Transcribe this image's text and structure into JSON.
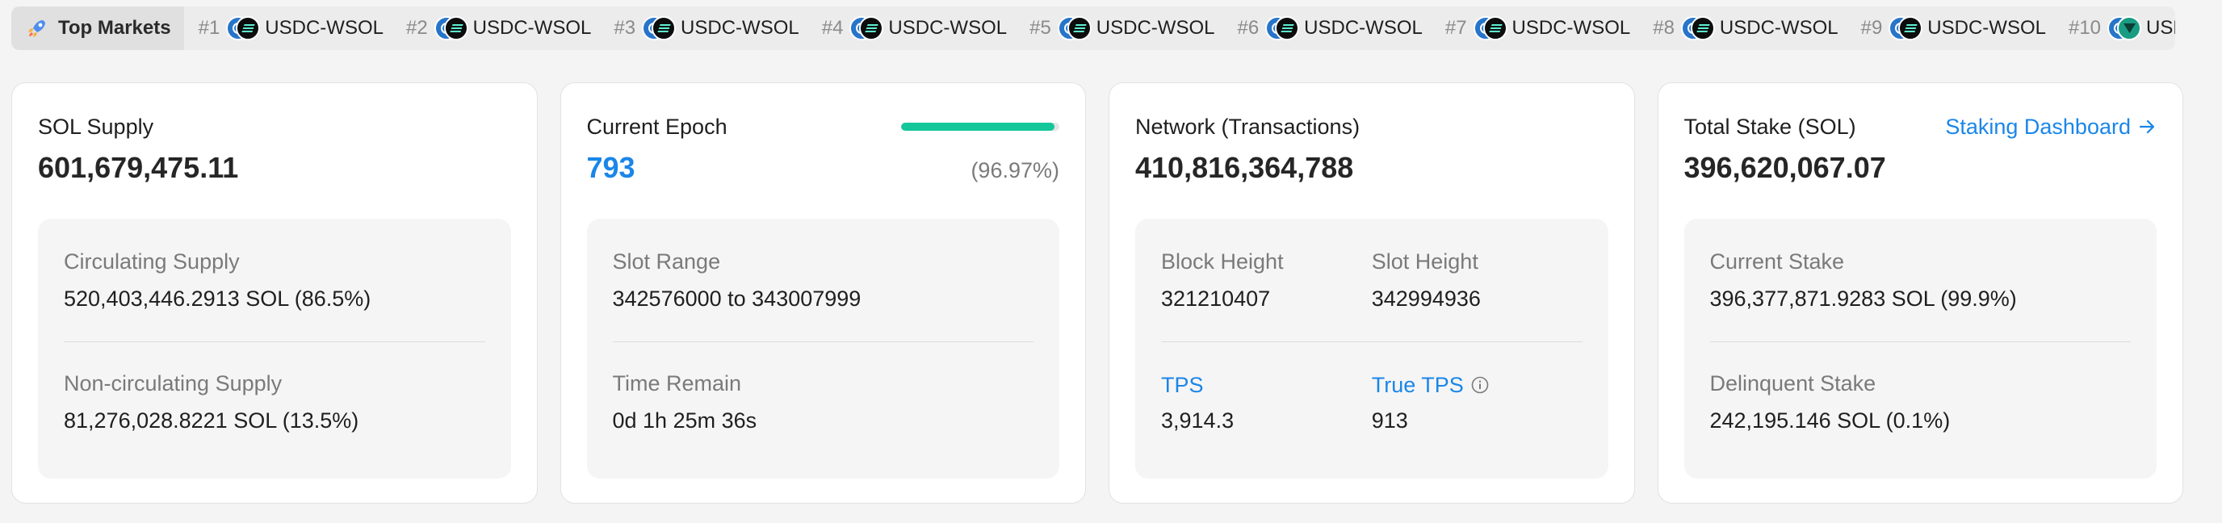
{
  "ticker": {
    "label": "Top Markets",
    "markets": [
      {
        "rank": "#1",
        "pair": "USDC-WSOL",
        "base_icon": "usdc-icon",
        "quote_icon": "sol-icon"
      },
      {
        "rank": "#2",
        "pair": "USDC-WSOL",
        "base_icon": "usdc-icon",
        "quote_icon": "sol-icon"
      },
      {
        "rank": "#3",
        "pair": "USDC-WSOL",
        "base_icon": "usdc-icon",
        "quote_icon": "sol-icon"
      },
      {
        "rank": "#4",
        "pair": "USDC-WSOL",
        "base_icon": "usdc-icon",
        "quote_icon": "sol-icon"
      },
      {
        "rank": "#5",
        "pair": "USDC-WSOL",
        "base_icon": "usdc-icon",
        "quote_icon": "sol-icon"
      },
      {
        "rank": "#6",
        "pair": "USDC-WSOL",
        "base_icon": "usdc-icon",
        "quote_icon": "sol-icon"
      },
      {
        "rank": "#7",
        "pair": "USDC-WSOL",
        "base_icon": "usdc-icon",
        "quote_icon": "sol-icon"
      },
      {
        "rank": "#8",
        "pair": "USDC-WSOL",
        "base_icon": "usdc-icon",
        "quote_icon": "sol-icon"
      },
      {
        "rank": "#9",
        "pair": "USDC-WSOL",
        "base_icon": "usdc-icon",
        "quote_icon": "sol-icon"
      },
      {
        "rank": "#10",
        "pair": "USDC-USDT",
        "base_icon": "usdc-icon",
        "quote_icon": "usdt-icon"
      }
    ]
  },
  "supply": {
    "title": "SOL Supply",
    "value": "601,679,475.11",
    "circulating_label": "Circulating Supply",
    "circulating_value": "520,403,446.2913 SOL (86.5%)",
    "non_circulating_label": "Non-circulating Supply",
    "non_circulating_value": "81,276,028.8221 SOL (13.5%)"
  },
  "epoch": {
    "title": "Current Epoch",
    "value": "793",
    "percent": "(96.97%)",
    "progress_fraction": 0.9697,
    "slot_range_label": "Slot Range",
    "slot_range_value": "342576000 to 343007999",
    "time_remain_label": "Time Remain",
    "time_remain_value": "0d 1h 25m 36s"
  },
  "network": {
    "title": "Network (Transactions)",
    "value": "410,816,364,788",
    "block_height_label": "Block Height",
    "block_height_value": "321210407",
    "slot_height_label": "Slot Height",
    "slot_height_value": "342994936",
    "tps_label": "TPS",
    "tps_value": "3,914.3",
    "true_tps_label": "True TPS",
    "true_tps_value": "913"
  },
  "stake": {
    "title": "Total Stake (SOL)",
    "link_label": "Staking Dashboard",
    "value": "396,620,067.07",
    "current_label": "Current Stake",
    "current_value": "396,377,871.9283 SOL (99.9%)",
    "delinquent_label": "Delinquent Stake",
    "delinquent_value": "242,195.146 SOL (0.1%)"
  },
  "colors": {
    "accent_blue": "#1a86e8",
    "progress_green": "#13c79a"
  }
}
